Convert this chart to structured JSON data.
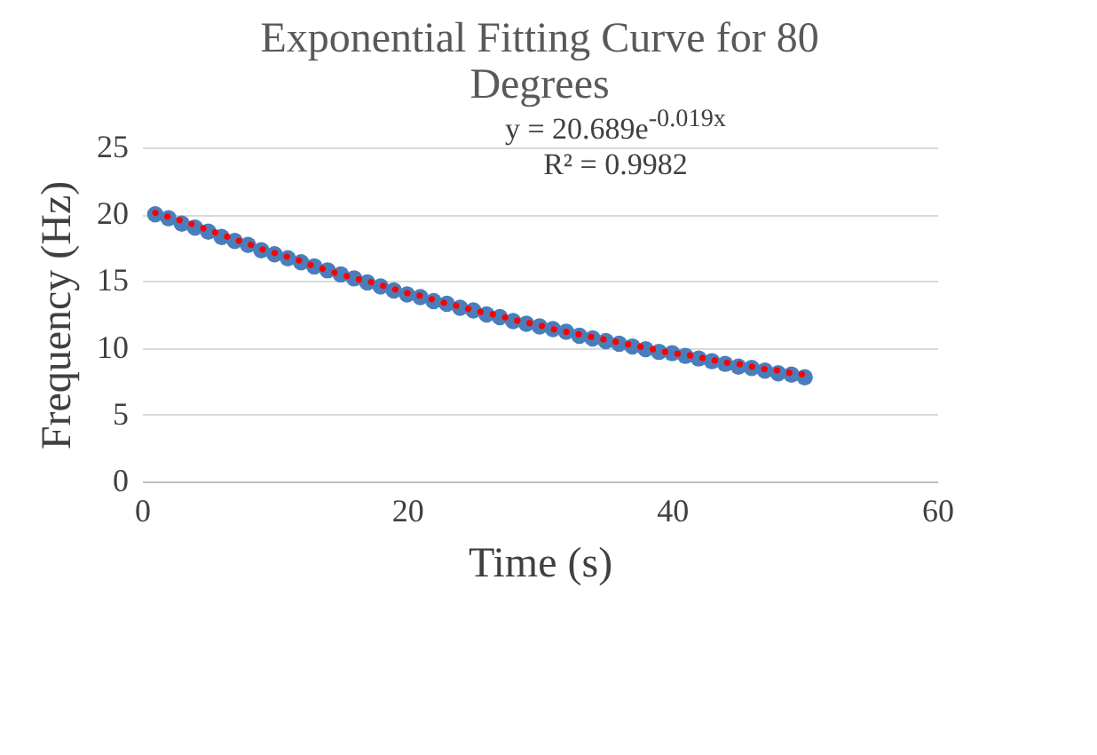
{
  "chart_data": {
    "type": "scatter",
    "title": "Exponential Fitting Curve for 80 Degrees",
    "xlabel": "Time (s)",
    "ylabel": "Frequency (Hz)",
    "x": [
      1,
      2,
      3,
      4,
      5,
      6,
      7,
      8,
      9,
      10,
      11,
      12,
      13,
      14,
      15,
      16,
      17,
      18,
      19,
      20,
      21,
      22,
      23,
      24,
      25,
      26,
      27,
      28,
      29,
      30,
      31,
      32,
      33,
      34,
      35,
      36,
      37,
      38,
      39,
      40,
      41,
      42,
      43,
      44,
      45,
      46,
      47,
      48,
      49,
      50
    ],
    "series": [
      {
        "color": "#4a7ebb",
        "marker": "circle",
        "values": [
          20.0,
          19.7,
          19.3,
          19.0,
          18.7,
          18.3,
          18.0,
          17.7,
          17.3,
          17.0,
          16.7,
          16.4,
          16.1,
          15.8,
          15.5,
          15.2,
          14.9,
          14.6,
          14.3,
          14.0,
          13.8,
          13.5,
          13.3,
          13.0,
          12.8,
          12.5,
          12.3,
          12.0,
          11.8,
          11.6,
          11.4,
          11.2,
          10.9,
          10.7,
          10.5,
          10.3,
          10.1,
          9.9,
          9.7,
          9.6,
          9.4,
          9.2,
          9.0,
          8.8,
          8.6,
          8.5,
          8.3,
          8.1,
          8.0,
          7.8
        ]
      },
      {
        "type": "line",
        "color": "#ff0000",
        "line_style": "dotted",
        "values": [
          20.1,
          19.8,
          19.5,
          19.2,
          18.8,
          18.5,
          18.1,
          17.8,
          17.4,
          17.1,
          16.8,
          16.5,
          16.1,
          15.8,
          15.5,
          15.2,
          15.0,
          14.7,
          14.4,
          14.1,
          13.9,
          13.6,
          13.3,
          13.1,
          12.8,
          12.6,
          12.4,
          12.1,
          11.9,
          11.7,
          11.4,
          11.2,
          11.0,
          10.8,
          10.6,
          10.4,
          10.2,
          10.0,
          9.8,
          9.6,
          9.5,
          9.3,
          9.1,
          8.9,
          8.8,
          8.6,
          8.4,
          8.3,
          8.1,
          8.0
        ]
      }
    ],
    "xlim": [
      0,
      60
    ],
    "xticks": [
      0,
      20,
      40,
      60
    ],
    "ylim": [
      0,
      25
    ],
    "yticks": [
      0,
      5,
      10,
      15,
      20,
      25
    ],
    "grid": "y",
    "annotations": [
      "y = 20.689e$^{-0.019x}$",
      "R² = 0.9982"
    ]
  }
}
